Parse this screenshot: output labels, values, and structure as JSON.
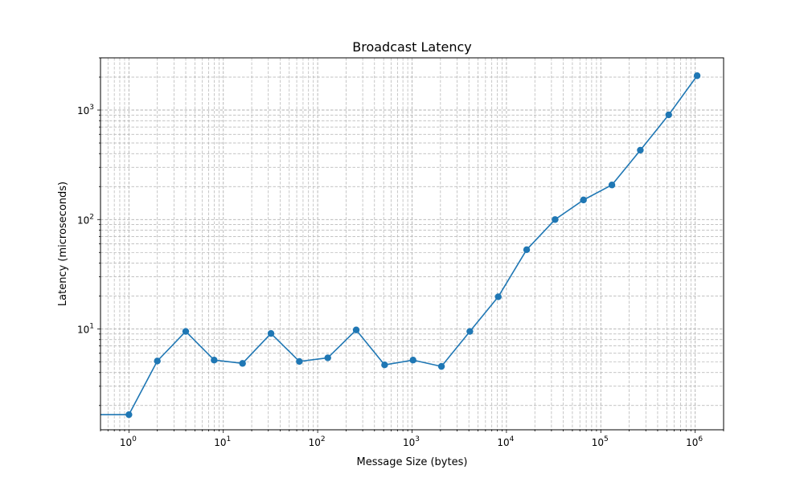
{
  "chart_data": {
    "type": "line",
    "title": "Broadcast Latency",
    "xlabel": "Message Size (bytes)",
    "ylabel": "Latency (microseconds)",
    "xscale": "log",
    "yscale": "log",
    "grid": "both major and minor, dashed",
    "x": [
      1,
      2,
      4,
      8,
      16,
      32,
      64,
      128,
      256,
      512,
      1024,
      2048,
      4096,
      8192,
      16384,
      32768,
      65536,
      131072,
      262144,
      524288,
      1048576
    ],
    "series": [
      {
        "color": "#1f77b4",
        "marker": "circle",
        "values": [
          1.65,
          5.1,
          9.5,
          5.2,
          4.85,
          9.1,
          5.05,
          5.45,
          9.8,
          4.7,
          5.2,
          4.55,
          9.5,
          19.7,
          53,
          100,
          151,
          207,
          430,
          905,
          2060
        ]
      }
    ],
    "xlim": [
      0.5,
      2000000
    ],
    "ylim": [
      1.2,
      3000
    ],
    "xticks": [
      {
        "base": "10",
        "exp": "0",
        "value": 1
      },
      {
        "base": "10",
        "exp": "1",
        "value": 10
      },
      {
        "base": "10",
        "exp": "2",
        "value": 100
      },
      {
        "base": "10",
        "exp": "3",
        "value": 1000
      },
      {
        "base": "10",
        "exp": "4",
        "value": 10000
      },
      {
        "base": "10",
        "exp": "5",
        "value": 100000
      },
      {
        "base": "10",
        "exp": "6",
        "value": 1000000
      }
    ],
    "yticks": [
      {
        "base": "10",
        "exp": "1",
        "value": 10
      },
      {
        "base": "10",
        "exp": "2",
        "value": 100
      },
      {
        "base": "10",
        "exp": "3",
        "value": 1000
      }
    ]
  }
}
